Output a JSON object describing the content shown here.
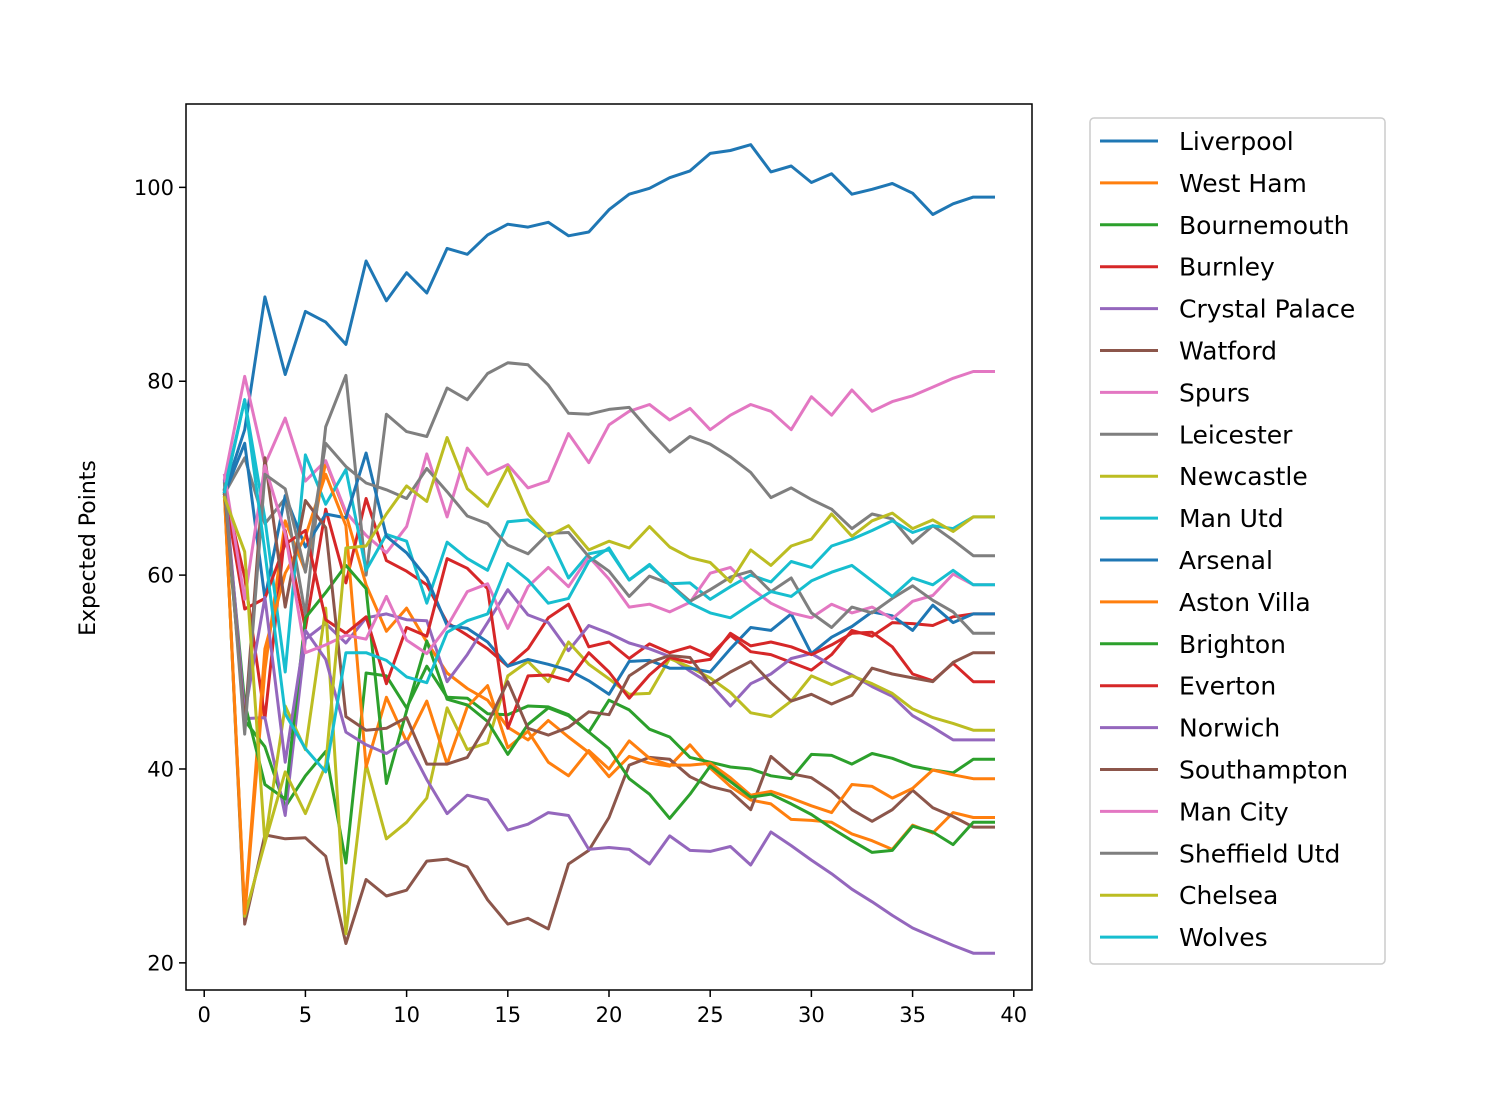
{
  "chart_data": {
    "type": "line",
    "title": "",
    "xlabel": "",
    "ylabel": "Expected Points",
    "xlim": [
      -0.9,
      40.9
    ],
    "ylim": [
      17.2,
      108.6
    ],
    "xticks": [
      0,
      5,
      10,
      15,
      20,
      25,
      30,
      35,
      40
    ],
    "yticks": [
      20,
      40,
      60,
      80,
      100
    ],
    "grid": false,
    "legend_position": "outside-right",
    "x": [
      1,
      2,
      3,
      4,
      5,
      6,
      7,
      8,
      9,
      10,
      11,
      12,
      13,
      14,
      15,
      16,
      17,
      18,
      19,
      20,
      21,
      22,
      23,
      24,
      25,
      26,
      27,
      28,
      29,
      30,
      31,
      32,
      33,
      34,
      35,
      36,
      37,
      38,
      39
    ],
    "series": [
      {
        "name": "Liverpool",
        "color": "#1f77b4",
        "values": [
          68.6,
          75.0,
          88.7,
          80.7,
          87.2,
          86.1,
          83.8,
          92.4,
          88.3,
          91.2,
          89.1,
          93.7,
          93.1,
          95.1,
          96.2,
          95.9,
          96.4,
          95.0,
          95.4,
          97.7,
          99.3,
          99.9,
          101.0,
          101.7,
          103.5,
          103.8,
          104.4,
          101.6,
          102.2,
          100.5,
          101.4,
          99.3,
          99.8,
          100.4,
          99.4,
          97.2,
          98.3,
          99.0,
          99.0
        ]
      },
      {
        "name": "West Ham",
        "color": "#ff7f0e",
        "values": [
          68.5,
          24.8,
          50.2,
          65.6,
          60.4,
          71.7,
          66.3,
          59.0,
          54.2,
          56.6,
          53.1,
          49.9,
          48.3,
          47.1,
          44.3,
          43.0,
          45.0,
          43.3,
          41.7,
          39.2,
          41.3,
          40.6,
          40.3,
          42.5,
          40.1,
          38.2,
          36.8,
          36.4,
          34.8,
          34.7,
          34.5,
          33.3,
          32.6,
          31.7,
          34.2,
          33.4,
          35.5,
          35.0,
          35.0
        ]
      },
      {
        "name": "Bournemouth",
        "color": "#2ca02c",
        "values": [
          68.0,
          45.0,
          42.3,
          36.1,
          39.3,
          41.8,
          30.3,
          49.9,
          49.6,
          46.3,
          50.6,
          47.4,
          47.3,
          45.7,
          45.6,
          46.5,
          46.4,
          45.6,
          43.8,
          47.1,
          46.1,
          44.1,
          43.3,
          41.2,
          40.7,
          40.2,
          40.0,
          39.3,
          39.0,
          41.5,
          41.4,
          40.5,
          41.6,
          41.1,
          40.3,
          39.9,
          39.6,
          41.0,
          41.0
        ]
      },
      {
        "name": "Burnley",
        "color": "#d62728",
        "values": [
          68.7,
          59.8,
          45.2,
          64.6,
          54.5,
          66.8,
          59.2,
          67.9,
          61.5,
          60.4,
          59.0,
          55.1,
          53.8,
          52.4,
          50.6,
          52.4,
          55.6,
          57.0,
          52.6,
          53.1,
          51.4,
          52.9,
          52.0,
          52.6,
          51.7,
          53.8,
          52.1,
          51.8,
          51.0,
          50.2,
          51.8,
          54.3,
          53.7,
          55.1,
          55.0,
          54.8,
          55.7,
          56.0,
          56.0
        ]
      },
      {
        "name": "Crystal Palace",
        "color": "#9467bd",
        "values": [
          69.5,
          45.2,
          45.3,
          35.2,
          53.4,
          55.0,
          53.0,
          55.6,
          56.0,
          55.4,
          55.3,
          49.0,
          51.8,
          55.1,
          58.5,
          55.9,
          55.1,
          52.2,
          54.8,
          54.0,
          53.0,
          52.4,
          51.6,
          50.1,
          48.8,
          46.5,
          48.8,
          49.8,
          51.4,
          51.9,
          50.7,
          49.7,
          48.5,
          47.5,
          45.5,
          44.3,
          43.0,
          43.0,
          43.0
        ]
      },
      {
        "name": "Watford",
        "color": "#8c564b",
        "values": [
          68.6,
          24.0,
          33.2,
          32.8,
          32.9,
          31.0,
          22.0,
          28.6,
          26.9,
          27.5,
          30.5,
          30.7,
          29.9,
          26.5,
          24.0,
          24.6,
          23.5,
          30.2,
          31.6,
          35.0,
          40.4,
          41.2,
          41.0,
          39.2,
          38.2,
          37.7,
          35.8,
          41.3,
          39.5,
          39.1,
          37.7,
          35.8,
          34.6,
          35.8,
          37.8,
          36.0,
          35.1,
          34.0,
          34.0
        ]
      },
      {
        "name": "Spurs",
        "color": "#e377c2",
        "values": [
          69.9,
          80.5,
          71.4,
          76.2,
          69.7,
          71.8,
          66.5,
          64.1,
          62.3,
          65.0,
          72.5,
          66.0,
          73.1,
          70.4,
          71.4,
          69.0,
          69.7,
          74.6,
          71.6,
          75.5,
          76.9,
          77.6,
          76.0,
          77.2,
          75.0,
          76.5,
          77.6,
          76.9,
          75.0,
          78.4,
          76.5,
          79.1,
          76.9,
          77.9,
          78.5,
          79.4,
          80.3,
          81.0,
          81.0
        ]
      },
      {
        "name": "Leicester",
        "color": "#7f7f7f",
        "values": [
          68.4,
          72.1,
          65.3,
          67.9,
          55.9,
          75.3,
          80.6,
          60.0,
          76.6,
          74.8,
          74.3,
          79.3,
          78.1,
          80.8,
          81.9,
          81.7,
          79.6,
          76.7,
          76.6,
          77.1,
          77.3,
          74.9,
          72.7,
          74.3,
          73.5,
          72.2,
          70.6,
          68.0,
          69.0,
          67.8,
          66.8,
          64.8,
          66.3,
          65.8,
          63.3,
          65.1,
          63.6,
          62.0,
          62.0
        ]
      },
      {
        "name": "Newcastle",
        "color": "#bcbd22",
        "values": [
          68.2,
          24.8,
          32.4,
          46.5,
          42.0,
          56.6,
          23.0,
          40.5,
          32.8,
          34.5,
          37.0,
          46.3,
          42.0,
          42.7,
          49.6,
          51.1,
          49.0,
          53.1,
          50.8,
          49.3,
          47.7,
          47.8,
          51.4,
          50.5,
          49.4,
          47.9,
          45.8,
          45.4,
          47.0,
          49.6,
          48.7,
          49.6,
          48.8,
          47.8,
          46.2,
          45.3,
          44.7,
          44.0,
          44.0
        ]
      },
      {
        "name": "Man Utd",
        "color": "#17becf",
        "values": [
          68.9,
          78.1,
          65.8,
          50.0,
          72.4,
          67.3,
          70.9,
          60.5,
          64.2,
          63.5,
          57.1,
          63.4,
          61.7,
          60.5,
          65.5,
          65.7,
          64.1,
          59.7,
          62.2,
          62.6,
          59.5,
          61.0,
          59.1,
          59.2,
          57.5,
          58.8,
          60.0,
          59.3,
          61.4,
          60.8,
          63.0,
          63.7,
          64.6,
          65.6,
          64.4,
          65.1,
          64.8,
          66.0,
          66.0
        ]
      },
      {
        "name": "Arsenal",
        "color": "#1f77b4",
        "values": [
          68.4,
          73.6,
          57.6,
          68.2,
          62.9,
          66.3,
          65.9,
          72.6,
          64.0,
          62.3,
          59.7,
          54.8,
          54.5,
          53.1,
          50.6,
          51.3,
          50.8,
          50.2,
          49.1,
          47.7,
          51.1,
          51.2,
          50.4,
          50.4,
          50.0,
          52.4,
          54.6,
          54.3,
          56.0,
          51.9,
          53.6,
          54.7,
          56.2,
          55.8,
          54.3,
          56.9,
          55.1,
          56.0,
          56.0
        ]
      },
      {
        "name": "Aston Villa",
        "color": "#ff7f0e",
        "values": [
          68.2,
          25.1,
          52.4,
          60.2,
          64.0,
          70.4,
          65.1,
          40.2,
          47.4,
          42.8,
          47.0,
          40.5,
          46.4,
          48.6,
          42.2,
          43.9,
          40.7,
          39.3,
          41.9,
          40.0,
          42.9,
          41.1,
          40.4,
          40.4,
          40.6,
          39.1,
          37.3,
          37.7,
          37.0,
          36.2,
          35.5,
          38.4,
          38.2,
          37.0,
          38.0,
          39.9,
          39.4,
          39.0,
          39.0
        ]
      },
      {
        "name": "Brighton",
        "color": "#2ca02c",
        "values": [
          68.7,
          46.8,
          38.4,
          36.9,
          55.6,
          58.2,
          61.0,
          58.6,
          38.5,
          46.0,
          53.2,
          47.2,
          46.6,
          44.9,
          41.5,
          44.6,
          46.3,
          45.5,
          43.8,
          42.1,
          39.0,
          37.4,
          34.9,
          37.4,
          40.3,
          38.7,
          37.1,
          37.4,
          36.4,
          35.3,
          33.9,
          32.6,
          31.4,
          31.6,
          34.1,
          33.5,
          32.2,
          34.5,
          34.5
        ]
      },
      {
        "name": "Everton",
        "color": "#d62728",
        "values": [
          68.7,
          56.5,
          57.6,
          63.2,
          64.6,
          55.4,
          54.0,
          55.7,
          48.8,
          54.6,
          53.7,
          61.7,
          60.7,
          58.6,
          44.2,
          49.6,
          49.7,
          49.1,
          52.0,
          50.0,
          47.3,
          49.7,
          51.5,
          51.0,
          51.3,
          54.0,
          52.7,
          53.1,
          52.6,
          51.8,
          52.8,
          54.0,
          54.1,
          52.6,
          49.8,
          49.1,
          50.9,
          49.0,
          49.0
        ]
      },
      {
        "name": "Norwich",
        "color": "#9467bd",
        "values": [
          69.7,
          45.7,
          57.7,
          40.7,
          54.3,
          51.3,
          43.8,
          42.5,
          41.6,
          42.9,
          38.9,
          35.4,
          37.3,
          36.8,
          33.7,
          34.3,
          35.5,
          35.2,
          31.7,
          31.9,
          31.7,
          30.2,
          33.1,
          31.6,
          31.5,
          32.0,
          30.1,
          33.5,
          32.1,
          30.6,
          29.2,
          27.6,
          26.3,
          24.9,
          23.6,
          22.7,
          21.8,
          21.0,
          21.0
        ]
      },
      {
        "name": "Southampton",
        "color": "#8c564b",
        "values": [
          68.8,
          44.5,
          72.1,
          56.7,
          67.7,
          64.9,
          45.4,
          44.0,
          44.2,
          45.3,
          40.5,
          40.5,
          41.2,
          44.7,
          49.0,
          44.2,
          43.5,
          44.3,
          45.9,
          45.6,
          49.6,
          51.0,
          51.7,
          51.5,
          48.7,
          50.0,
          51.1,
          48.9,
          47.0,
          47.7,
          46.7,
          47.6,
          50.4,
          49.8,
          49.4,
          49.0,
          51.0,
          52.0,
          52.0
        ]
      },
      {
        "name": "Man City",
        "color": "#e377c2",
        "values": [
          70.3,
          57.5,
          71.3,
          64.3,
          52.0,
          52.8,
          53.8,
          53.4,
          57.8,
          53.3,
          51.9,
          54.7,
          58.3,
          59.1,
          54.5,
          58.8,
          60.8,
          58.8,
          61.9,
          59.6,
          56.7,
          57.0,
          56.2,
          57.2,
          60.2,
          60.8,
          58.7,
          57.1,
          56.1,
          55.6,
          57.0,
          56.1,
          56.7,
          55.5,
          57.3,
          57.9,
          60.1,
          59.0,
          59.0
        ]
      },
      {
        "name": "Sheffield Utd",
        "color": "#7f7f7f",
        "values": [
          69.4,
          43.6,
          70.4,
          68.9,
          60.3,
          73.6,
          71.2,
          69.5,
          68.8,
          67.9,
          71.0,
          68.6,
          66.1,
          65.3,
          63.1,
          62.2,
          64.3,
          64.4,
          61.9,
          60.4,
          57.8,
          59.9,
          59.1,
          57.3,
          58.5,
          59.8,
          60.4,
          58.3,
          59.7,
          56.1,
          54.6,
          56.7,
          56.1,
          57.6,
          58.9,
          57.4,
          56.2,
          54.0,
          54.0
        ]
      },
      {
        "name": "Chelsea",
        "color": "#bcbd22",
        "values": [
          68.0,
          62.4,
          32.4,
          39.7,
          35.4,
          40.4,
          62.8,
          63.0,
          66.3,
          69.2,
          67.6,
          74.2,
          68.9,
          67.1,
          71.1,
          66.3,
          64.0,
          65.1,
          62.6,
          63.5,
          62.8,
          65.0,
          62.9,
          61.8,
          61.3,
          59.3,
          62.6,
          61.0,
          63.0,
          63.7,
          66.3,
          64.0,
          65.6,
          66.4,
          64.8,
          65.7,
          64.5,
          66.0,
          66.0
        ]
      },
      {
        "name": "Wolves",
        "color": "#17becf",
        "values": [
          68.6,
          78.1,
          62.4,
          45.7,
          42.1,
          39.7,
          52.0,
          52.0,
          51.2,
          49.5,
          48.9,
          54.1,
          55.3,
          56.0,
          61.2,
          59.5,
          57.1,
          57.6,
          61.4,
          62.8,
          59.5,
          61.1,
          59.0,
          57.1,
          56.1,
          55.6,
          57.0,
          58.3,
          57.8,
          59.4,
          60.3,
          61.0,
          59.4,
          57.8,
          59.7,
          59.0,
          60.5,
          59.0,
          59.0
        ]
      }
    ]
  }
}
